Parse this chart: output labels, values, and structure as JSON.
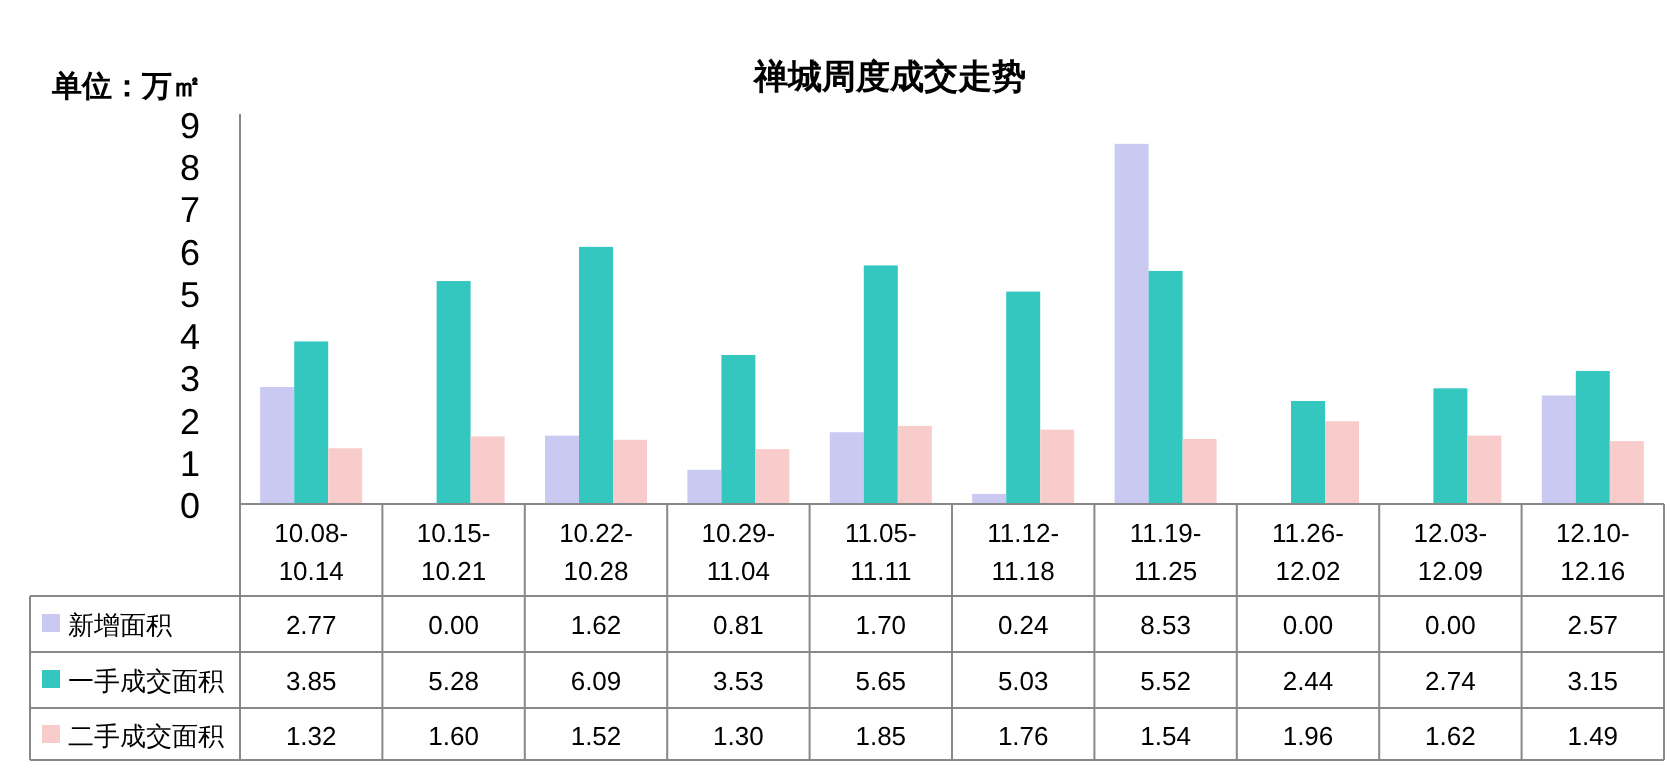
{
  "chart_data": {
    "type": "bar",
    "title": "禅城周度成交走势",
    "ylabel": "单位：万㎡",
    "categories": [
      "10.08-10.14",
      "10.15-10.21",
      "10.22-10.28",
      "10.29-11.04",
      "11.05-11.11",
      "11.12-11.18",
      "11.19-11.25",
      "11.26-12.02",
      "12.03-12.09",
      "12.10-12.16"
    ],
    "series": [
      {
        "name": "新增面积",
        "color": "#c9c9f2",
        "values": [
          2.77,
          0,
          1.62,
          0.81,
          1.7,
          0.24,
          8.53,
          0,
          0,
          2.57
        ],
        "value_labels": [
          "2.77",
          "0.00",
          "1.62",
          "0.81",
          "1.70",
          "0.24",
          "8.53",
          "0.00",
          "0.00",
          "2.57"
        ]
      },
      {
        "name": "一手成交面积",
        "color": "#33c7bf",
        "values": [
          3.85,
          5.28,
          6.09,
          3.53,
          5.65,
          5.03,
          5.52,
          2.44,
          2.74,
          3.15
        ],
        "value_labels": [
          "3.85",
          "5.28",
          "6.09",
          "3.53",
          "5.65",
          "5.03",
          "5.52",
          "2.44",
          "2.74",
          "3.15"
        ]
      },
      {
        "name": "二手成交面积",
        "color": "#f9cccc",
        "values": [
          1.32,
          1.6,
          1.52,
          1.3,
          1.85,
          1.76,
          1.54,
          1.96,
          1.62,
          1.49
        ],
        "value_labels": [
          "1.32",
          "1.60",
          "1.52",
          "1.30",
          "1.85",
          "1.76",
          "1.54",
          "1.96",
          "1.62",
          "1.49"
        ]
      }
    ],
    "ylim": [
      0,
      9
    ],
    "yticks": [
      0,
      1,
      2,
      3,
      4,
      5,
      6,
      7,
      8,
      9
    ],
    "grid": false,
    "legend": "bottom"
  }
}
